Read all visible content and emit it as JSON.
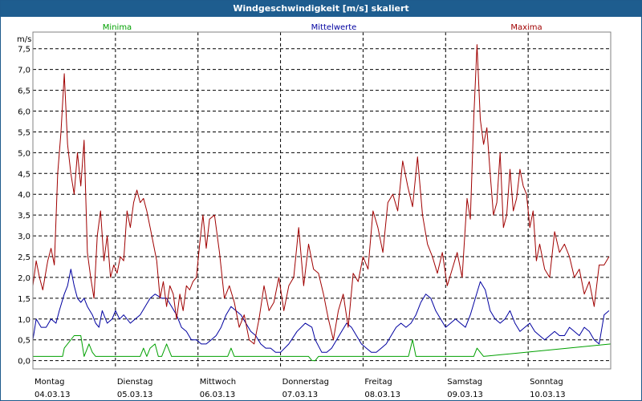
{
  "chart_data": {
    "type": "line",
    "title": "Windgeschwindigkeit [m/s] skaliert",
    "ylabel": "m/s",
    "ylim": [
      -0.2,
      7.9
    ],
    "yticks": [
      0.0,
      0.5,
      1.0,
      1.5,
      2.0,
      2.5,
      3.0,
      3.5,
      4.0,
      4.5,
      5.0,
      5.5,
      6.0,
      6.5,
      7.0,
      7.5
    ],
    "ytick_labels": [
      "0,0",
      "0,5",
      "1,0",
      "1,5",
      "2,0",
      "2,5",
      "3,0",
      "3,5",
      "4,0",
      "4,5",
      "5,0",
      "5,5",
      "6,0",
      "6,5",
      "7,0",
      "7,5"
    ],
    "xlim": [
      0,
      7
    ],
    "x_unit": "days from start of 04.03.13",
    "grid": true,
    "days": [
      {
        "weekday": "Montag",
        "date": "04.03.13"
      },
      {
        "weekday": "Dienstag",
        "date": "05.03.13"
      },
      {
        "weekday": "Mittwoch",
        "date": "06.03.13"
      },
      {
        "weekday": "Donnerstag",
        "date": "07.03.13"
      },
      {
        "weekday": "Freitag",
        "date": "08.03.13"
      },
      {
        "weekday": "Samstag",
        "date": "09.03.13"
      },
      {
        "weekday": "Sonntag",
        "date": "10.03.13"
      }
    ],
    "series": [
      {
        "name": "Minima",
        "color": "#00a000",
        "x": [
          0,
          0.36,
          0.38,
          0.5,
          0.54,
          0.58,
          0.62,
          0.68,
          0.72,
          0.76,
          1.3,
          1.34,
          1.38,
          1.42,
          1.48,
          1.52,
          1.56,
          1.6,
          1.62,
          1.68,
          2.36,
          2.4,
          2.44,
          3.34,
          3.38,
          3.42,
          3.46,
          4.55,
          4.6,
          4.64,
          5.0,
          5.34,
          5.38,
          5.42,
          5.46,
          7.0
        ],
        "y": [
          0.1,
          0.1,
          0.3,
          0.6,
          0.6,
          0.6,
          0.1,
          0.4,
          0.2,
          0.1,
          0.1,
          0.3,
          0.1,
          0.3,
          0.4,
          0.1,
          0.1,
          0.3,
          0.4,
          0.1,
          0.1,
          0.3,
          0.1,
          0.1,
          0.0,
          0.0,
          0.1,
          0.1,
          0.5,
          0.1,
          0.1,
          0.1,
          0.3,
          0.2,
          0.1,
          0.4
        ]
      },
      {
        "name": "Mittelwerte",
        "color": "#0000a0",
        "x": [
          0,
          0.04,
          0.1,
          0.16,
          0.22,
          0.28,
          0.32,
          0.38,
          0.42,
          0.46,
          0.5,
          0.54,
          0.58,
          0.62,
          0.66,
          0.72,
          0.76,
          0.8,
          0.84,
          0.9,
          0.96,
          1.0,
          1.05,
          1.1,
          1.18,
          1.24,
          1.3,
          1.36,
          1.42,
          1.48,
          1.56,
          1.62,
          1.68,
          1.74,
          1.8,
          1.86,
          1.92,
          1.98,
          2.04,
          2.1,
          2.16,
          2.22,
          2.28,
          2.34,
          2.4,
          2.46,
          2.52,
          2.58,
          2.64,
          2.7,
          2.76,
          2.82,
          2.88,
          2.94,
          3.0,
          3.1,
          3.2,
          3.3,
          3.38,
          3.42,
          3.5,
          3.56,
          3.62,
          3.68,
          3.74,
          3.8,
          3.86,
          3.92,
          3.98,
          4.04,
          4.1,
          4.16,
          4.22,
          4.28,
          4.34,
          4.4,
          4.46,
          4.52,
          4.58,
          4.64,
          4.7,
          4.76,
          4.82,
          4.88,
          4.94,
          5.0,
          5.06,
          5.12,
          5.18,
          5.24,
          5.3,
          5.36,
          5.42,
          5.48,
          5.54,
          5.6,
          5.66,
          5.72,
          5.78,
          5.84,
          5.9,
          5.96,
          6.02,
          6.08,
          6.14,
          6.2,
          6.26,
          6.32,
          6.38,
          6.44,
          6.5,
          6.56,
          6.62,
          6.68,
          6.74,
          6.8,
          6.86,
          6.92,
          6.98
        ],
        "y": [
          0.5,
          1.0,
          0.8,
          0.8,
          1.0,
          0.9,
          1.2,
          1.6,
          1.8,
          2.2,
          1.8,
          1.5,
          1.4,
          1.5,
          1.3,
          1.1,
          0.9,
          0.8,
          1.2,
          0.9,
          1.0,
          1.2,
          1.0,
          1.1,
          0.9,
          1.0,
          1.1,
          1.3,
          1.5,
          1.6,
          1.5,
          1.5,
          1.3,
          1.1,
          0.8,
          0.7,
          0.5,
          0.5,
          0.4,
          0.4,
          0.5,
          0.6,
          0.8,
          1.1,
          1.3,
          1.2,
          1.1,
          0.9,
          0.7,
          0.6,
          0.4,
          0.3,
          0.3,
          0.2,
          0.2,
          0.4,
          0.7,
          0.9,
          0.8,
          0.5,
          0.2,
          0.2,
          0.3,
          0.5,
          0.7,
          0.9,
          0.8,
          0.6,
          0.4,
          0.3,
          0.2,
          0.2,
          0.3,
          0.4,
          0.6,
          0.8,
          0.9,
          0.8,
          0.9,
          1.1,
          1.4,
          1.6,
          1.5,
          1.2,
          1.0,
          0.8,
          0.9,
          1.0,
          0.9,
          0.8,
          1.1,
          1.5,
          1.9,
          1.7,
          1.2,
          1.0,
          0.9,
          1.0,
          1.2,
          0.9,
          0.7,
          0.8,
          0.9,
          0.7,
          0.6,
          0.5,
          0.6,
          0.7,
          0.6,
          0.6,
          0.8,
          0.7,
          0.6,
          0.8,
          0.7,
          0.5,
          0.4,
          1.1,
          1.2
        ]
      },
      {
        "name": "Maxima",
        "color": "#a00000",
        "x": [
          0,
          0.04,
          0.08,
          0.12,
          0.18,
          0.22,
          0.26,
          0.3,
          0.34,
          0.38,
          0.42,
          0.46,
          0.5,
          0.54,
          0.58,
          0.62,
          0.66,
          0.7,
          0.74,
          0.78,
          0.82,
          0.86,
          0.9,
          0.94,
          0.98,
          1.02,
          1.06,
          1.1,
          1.14,
          1.18,
          1.22,
          1.26,
          1.3,
          1.34,
          1.38,
          1.42,
          1.46,
          1.5,
          1.54,
          1.58,
          1.62,
          1.66,
          1.7,
          1.74,
          1.78,
          1.82,
          1.86,
          1.9,
          1.94,
          1.98,
          2.02,
          2.06,
          2.1,
          2.14,
          2.2,
          2.26,
          2.32,
          2.38,
          2.44,
          2.5,
          2.56,
          2.62,
          2.68,
          2.74,
          2.8,
          2.86,
          2.92,
          2.98,
          3.04,
          3.1,
          3.16,
          3.22,
          3.28,
          3.34,
          3.4,
          3.46,
          3.52,
          3.58,
          3.64,
          3.7,
          3.76,
          3.82,
          3.88,
          3.94,
          4.0,
          4.06,
          4.12,
          4.18,
          4.24,
          4.3,
          4.36,
          4.42,
          4.48,
          4.54,
          4.6,
          4.66,
          4.72,
          4.78,
          4.84,
          4.9,
          4.96,
          5.02,
          5.08,
          5.14,
          5.2,
          5.26,
          5.3,
          5.34,
          5.38,
          5.42,
          5.46,
          5.5,
          5.54,
          5.58,
          5.62,
          5.66,
          5.7,
          5.74,
          5.78,
          5.82,
          5.86,
          5.9,
          5.94,
          5.98,
          6.02,
          6.06,
          6.1,
          6.14,
          6.2,
          6.26,
          6.32,
          6.38,
          6.44,
          6.5,
          6.56,
          6.62,
          6.68,
          6.74,
          6.8,
          6.86,
          6.92,
          6.98
        ],
        "y": [
          1.8,
          2.4,
          2.0,
          1.7,
          2.4,
          2.7,
          2.3,
          4.5,
          5.5,
          6.9,
          5.2,
          4.5,
          4.0,
          5.0,
          4.2,
          5.3,
          2.6,
          2.0,
          1.5,
          3.0,
          3.6,
          2.4,
          3.0,
          2.0,
          2.3,
          2.1,
          2.5,
          2.4,
          3.6,
          3.2,
          3.8,
          4.1,
          3.8,
          3.9,
          3.6,
          3.2,
          2.8,
          2.4,
          1.5,
          1.9,
          1.3,
          1.8,
          1.6,
          1.0,
          1.6,
          1.2,
          1.8,
          1.7,
          1.9,
          2.0,
          2.8,
          3.5,
          2.7,
          3.4,
          3.5,
          2.6,
          1.5,
          1.8,
          1.4,
          0.8,
          1.1,
          0.5,
          0.4,
          1.0,
          1.8,
          1.2,
          1.4,
          2.0,
          1.2,
          1.8,
          2.0,
          3.2,
          1.8,
          2.8,
          2.2,
          2.1,
          1.6,
          1.0,
          0.5,
          1.2,
          1.6,
          0.8,
          2.1,
          1.9,
          2.5,
          2.2,
          3.6,
          3.2,
          2.6,
          3.8,
          4.0,
          3.6,
          4.8,
          4.2,
          3.7,
          4.9,
          3.5,
          2.8,
          2.5,
          2.1,
          2.6,
          1.8,
          2.2,
          2.6,
          2.0,
          3.9,
          3.4,
          5.8,
          7.6,
          5.8,
          5.2,
          5.6,
          4.5,
          3.5,
          3.8,
          5.0,
          3.2,
          3.5,
          4.6,
          3.6,
          3.9,
          4.6,
          4.2,
          4.0,
          3.2,
          3.6,
          2.4,
          2.8,
          2.2,
          2.0,
          3.1,
          2.6,
          2.8,
          2.5,
          2.0,
          2.2,
          1.6,
          1.9,
          1.3,
          2.3,
          2.3,
          2.5
        ]
      }
    ]
  }
}
